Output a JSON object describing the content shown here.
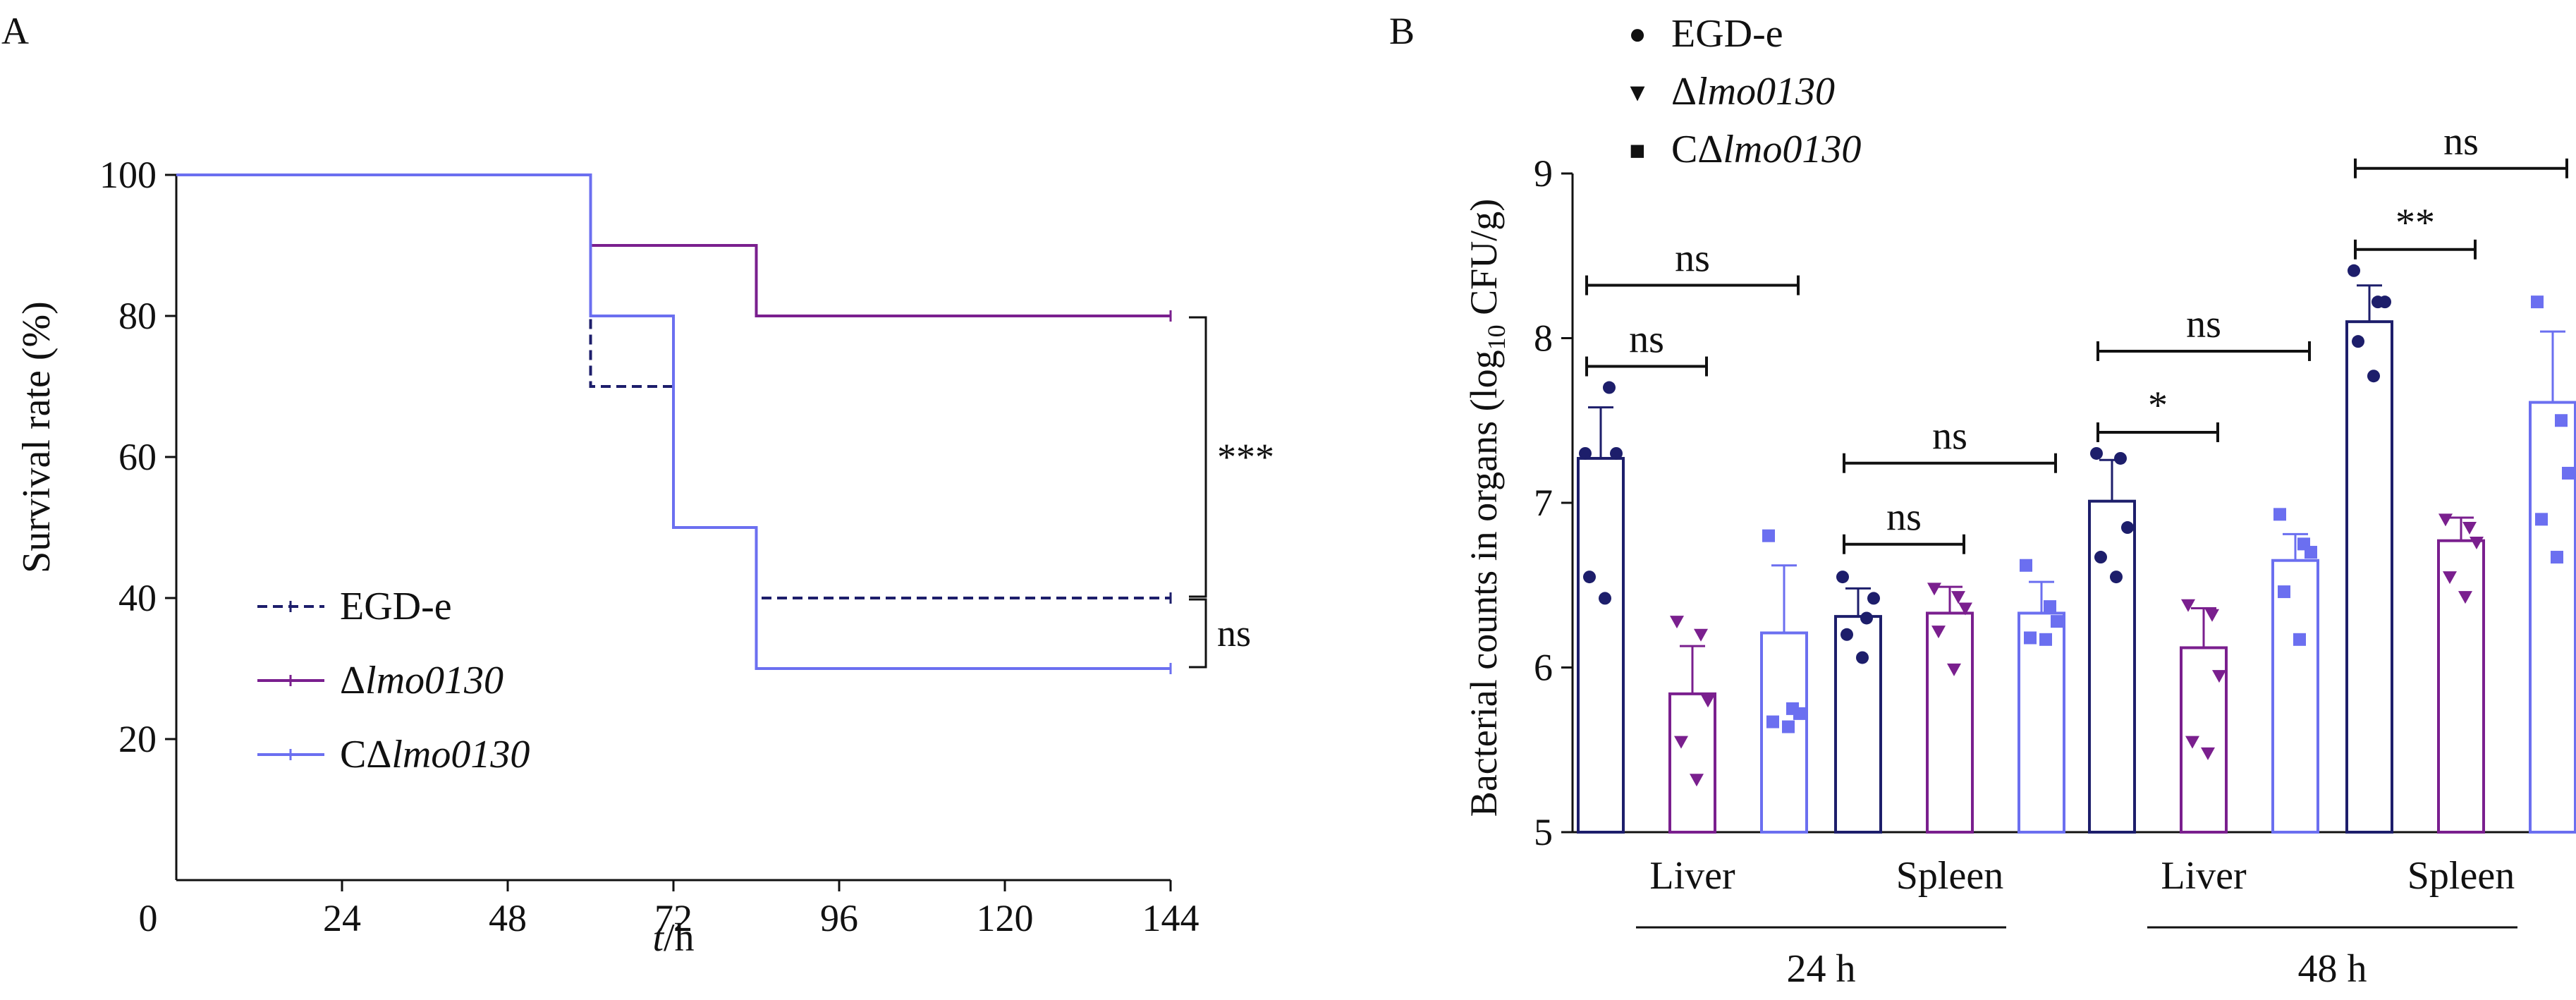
{
  "panels": {
    "a_label": "A",
    "b_label": "B"
  },
  "colors": {
    "egd": "#1d1e6b",
    "lmo": "#7a1f8e",
    "clmo": "#6b6ff0",
    "axis": "#111111"
  },
  "chart_data": [
    {
      "type": "line",
      "panel": "A",
      "xlabel_italic": "t",
      "xlabel_rest": "/h",
      "ylabel": "Survival rate (%)",
      "x_ticks": [
        0,
        24,
        48,
        72,
        96,
        120,
        144
      ],
      "y_ticks": [
        20,
        40,
        60,
        80,
        100
      ],
      "xlim": [
        0,
        144
      ],
      "ylim": [
        0,
        100
      ],
      "step": true,
      "series": [
        {
          "key": "egd",
          "name": "EGD-e",
          "dash": true,
          "x": [
            0,
            60,
            72,
            84,
            144
          ],
          "y": [
            100,
            70,
            50,
            40,
            40
          ]
        },
        {
          "key": "lmo",
          "name_prefix": "Δ",
          "name_italic": "lmo0130",
          "x": [
            0,
            60,
            84,
            144
          ],
          "y": [
            100,
            90,
            80,
            80
          ]
        },
        {
          "key": "clmo",
          "name_prefix": "CΔ",
          "name_italic": "lmo0130",
          "x": [
            0,
            60,
            72,
            84,
            144
          ],
          "y": [
            100,
            80,
            50,
            30,
            30
          ]
        }
      ],
      "significance": [
        {
          "label": "***",
          "between": [
            "lmo",
            "egd"
          ]
        },
        {
          "label": "ns",
          "between": [
            "egd",
            "clmo"
          ]
        }
      ]
    },
    {
      "type": "bar",
      "panel": "B",
      "ylabel_prefix": "Bacterial counts in organs (log",
      "ylabel_sub": "10",
      "ylabel_suffix": " CFU/g)",
      "ylim": [
        5,
        9
      ],
      "y_ticks": [
        5,
        6,
        7,
        8,
        9
      ],
      "categories": [
        "Liver",
        "Spleen",
        "Liver",
        "Spleen"
      ],
      "timepoints": [
        {
          "label": "24 h",
          "groups": [
            0,
            1
          ]
        },
        {
          "label": "48 h",
          "groups": [
            2,
            3
          ]
        }
      ],
      "legend": [
        {
          "key": "egd",
          "marker": "●",
          "text": "EGD-e"
        },
        {
          "key": "lmo",
          "marker": "▾",
          "prefix": "Δ",
          "italic": "lmo0130"
        },
        {
          "key": "clmo",
          "marker": "■",
          "prefix": "CΔ",
          "italic": "lmo0130"
        }
      ],
      "series": [
        {
          "key": "egd",
          "name": "EGD-e",
          "values": [
            7.27,
            6.31,
            7.01,
            8.1
          ],
          "errors": [
            0.31,
            0.17,
            0.25,
            0.22
          ],
          "points": [
            [
              7.3,
              7.7,
              7.3,
              6.55,
              6.42
            ],
            [
              6.55,
              6.3,
              6.42,
              6.2,
              6.06
            ],
            [
              7.3,
              7.27,
              6.85,
              6.67,
              6.55
            ],
            [
              8.41,
              8.22,
              8.22,
              7.98,
              7.77
            ]
          ]
        },
        {
          "key": "lmo",
          "name": "Δlmo0130",
          "values": [
            5.84,
            6.33,
            6.12,
            6.77
          ],
          "errors": [
            0.29,
            0.16,
            0.24,
            0.14
          ],
          "points": [
            [
              6.28,
              6.2,
              5.8,
              5.55,
              5.32
            ],
            [
              6.48,
              6.43,
              6.36,
              6.22,
              5.99
            ],
            [
              6.38,
              6.32,
              5.95,
              5.55,
              5.48
            ],
            [
              6.9,
              6.85,
              6.76,
              6.55,
              6.43
            ]
          ]
        },
        {
          "key": "clmo",
          "name": "CΔlmo0130",
          "values": [
            6.21,
            6.33,
            6.65,
            7.61
          ],
          "errors": [
            0.41,
            0.19,
            0.16,
            0.43
          ],
          "points": [
            [
              6.8,
              5.75,
              5.72,
              5.67,
              5.64
            ],
            [
              6.62,
              6.37,
              6.28,
              6.18,
              6.17
            ],
            [
              6.93,
              6.75,
              6.7,
              6.46,
              6.17
            ],
            [
              8.22,
              7.5,
              7.18,
              6.9,
              6.67
            ]
          ]
        }
      ],
      "comparisons": [
        {
          "group": 0,
          "label": "ns",
          "from": "egd",
          "to": "lmo",
          "level": 0
        },
        {
          "group": 0,
          "label": "ns",
          "from": "egd",
          "to": "clmo",
          "level": 1
        },
        {
          "group": 1,
          "label": "ns",
          "from": "egd",
          "to": "lmo",
          "level": 0
        },
        {
          "group": 1,
          "label": "ns",
          "from": "egd",
          "to": "clmo",
          "level": 1
        },
        {
          "group": 2,
          "label": "*",
          "from": "egd",
          "to": "lmo",
          "level": 0
        },
        {
          "group": 2,
          "label": "ns",
          "from": "egd",
          "to": "clmo",
          "level": 1
        },
        {
          "group": 3,
          "label": "**",
          "from": "egd",
          "to": "lmo",
          "level": 0
        },
        {
          "group": 3,
          "label": "ns",
          "from": "egd",
          "to": "clmo",
          "level": 1
        }
      ]
    }
  ]
}
